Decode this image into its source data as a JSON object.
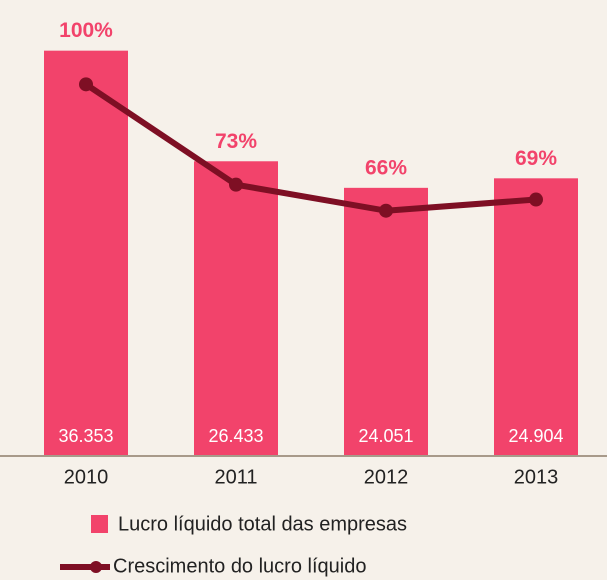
{
  "chart_data": {
    "type": "bar",
    "categories": [
      "2010",
      "2011",
      "2012",
      "2013"
    ],
    "series": [
      {
        "name": "Lucro líquido total das empresas",
        "color": "#f2436b",
        "values": [
          36353,
          26433,
          24051,
          24904
        ],
        "value_labels": [
          "36.353",
          "26.433",
          "24.051",
          "24.904"
        ]
      },
      {
        "name": "Crescimento do lucro líquido",
        "color": "#7e0f24",
        "type": "line",
        "axis": "y2",
        "values": [
          100,
          73,
          66,
          69
        ],
        "value_labels": [
          "100%",
          "73%",
          "66%",
          "69%"
        ]
      }
    ],
    "ylim": [
      0,
      40000
    ],
    "y2lim": [
      0,
      120
    ]
  }
}
